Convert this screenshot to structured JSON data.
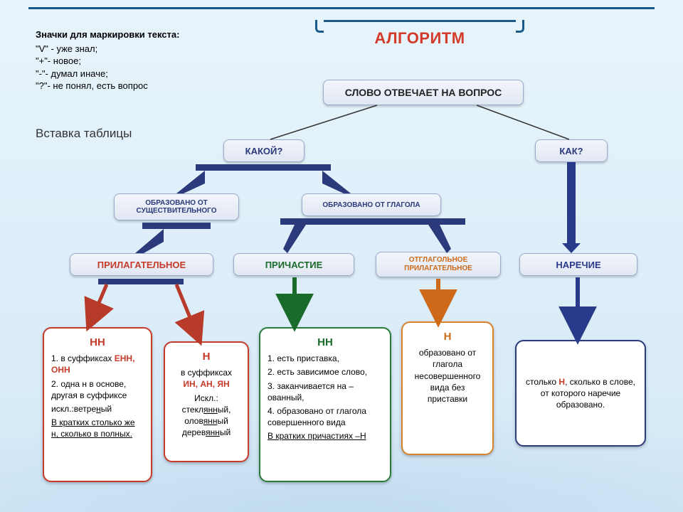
{
  "background": {
    "top": "#e8f4fb",
    "bottom": "#d4e9f7",
    "accent": "#1a5a8a"
  },
  "notes": {
    "title": "Значки для маркировки текста:",
    "items": [
      "\"V\" - уже знал;",
      "\"+\"- новое;",
      "\"-\"- думал иначе;",
      "\"?\"- не понял, есть вопрос"
    ]
  },
  "insert": "Вставка таблицы",
  "title": "АЛГОРИТМ",
  "boxes": {
    "root": "СЛОВО ОТВЕЧАЕТ НА ВОПРОС",
    "kakoy": "КАКОЙ?",
    "kak": "КАК?",
    "noun": "ОБРАЗОВАНО ОТ СУЩЕСТВИТЕЛЬНОГО",
    "glag": "ОБРАЗОВАНО ОТ ГЛАГОЛА",
    "adj": "ПРИЛАГАТЕЛЬНОЕ",
    "part": "ПРИЧАСТИЕ",
    "otgl": "ОТГЛАГОЛЬНОЕ ПРИЛАГАТЕЛЬНОЕ",
    "adv": "НАРЕЧИЕ",
    "colors": {
      "adj": "#c63a2a",
      "part": "#1a6a2a",
      "otgl": "#cc6a1a",
      "adv": "#2a3a8a",
      "default": "#2a3a7a"
    }
  },
  "cards": {
    "c1": {
      "h": "НН",
      "hcolor": "#c63a2a",
      "lines": [
        "1. в суффиксах <b class='red'>ЕНН, ОНН</b>",
        "2. одна н в основе, другая в суффиксе",
        "искл.:ветре<span class='u'>н</span>ый",
        "<span class='u'>В кратких столько же н, сколько в полных.</span>"
      ]
    },
    "c2": {
      "h": "Н",
      "hcolor": "#c63a2a",
      "lines": [
        "в суффиксах <b class='red'>ИН, АН, ЯН</b>",
        "",
        "Искл.: стекл<span class='u'>янн</span>ый, олов<span class='u'>янн</span>ый дерев<span class='u'>янн</span>ый"
      ]
    },
    "c3": {
      "h": "НН",
      "hcolor": "#1a6a2a",
      "lines": [
        "1. есть приставка,",
        "2. есть зависимое слово,",
        "3. заканчивается на –ованный,",
        "4. образовано от глагола совершенного вида",
        "<span class='u'>В кратких причастиях –Н</span>"
      ]
    },
    "c4": {
      "h": "Н",
      "hcolor": "#cc6a1a",
      "lines": [
        "образовано от глагола несовершенного вида без приставки"
      ]
    },
    "c5": {
      "text": "столько <b class='red'>Н</b>, сколько в слове, от которого наречие образовано."
    }
  },
  "arrows": {
    "stroke_default": "#2a3a7a",
    "edges": [
      {
        "from": "root",
        "to": "kakoy",
        "color": "#222",
        "type": "line"
      },
      {
        "from": "root",
        "to": "kak",
        "color": "#222",
        "type": "line"
      },
      {
        "from": "kakoy",
        "to": "noun",
        "color": "#2a3a7a",
        "type": "block"
      },
      {
        "from": "kakoy",
        "to": "glag",
        "color": "#2a3a7a",
        "type": "block"
      },
      {
        "from": "noun",
        "to": "adj",
        "color": "#2a3a7a",
        "type": "block"
      },
      {
        "from": "glag",
        "to": "part",
        "color": "#2a3a7a",
        "type": "block"
      },
      {
        "from": "glag",
        "to": "otgl",
        "color": "#2a3a7a",
        "type": "block"
      },
      {
        "from": "kak",
        "to": "adv",
        "color": "#2a3a8a",
        "type": "block",
        "tall": true
      },
      {
        "from": "adj",
        "to": "c1",
        "color": "#b83a2a",
        "type": "v"
      },
      {
        "from": "adj",
        "to": "c2",
        "color": "#b83a2a",
        "type": "v"
      },
      {
        "from": "part",
        "to": "c3",
        "color": "#1a6a2a",
        "type": "v"
      },
      {
        "from": "otgl",
        "to": "c4",
        "color": "#cc6a1a",
        "type": "v"
      },
      {
        "from": "adv",
        "to": "c5",
        "color": "#2a3a8a",
        "type": "v"
      }
    ]
  }
}
